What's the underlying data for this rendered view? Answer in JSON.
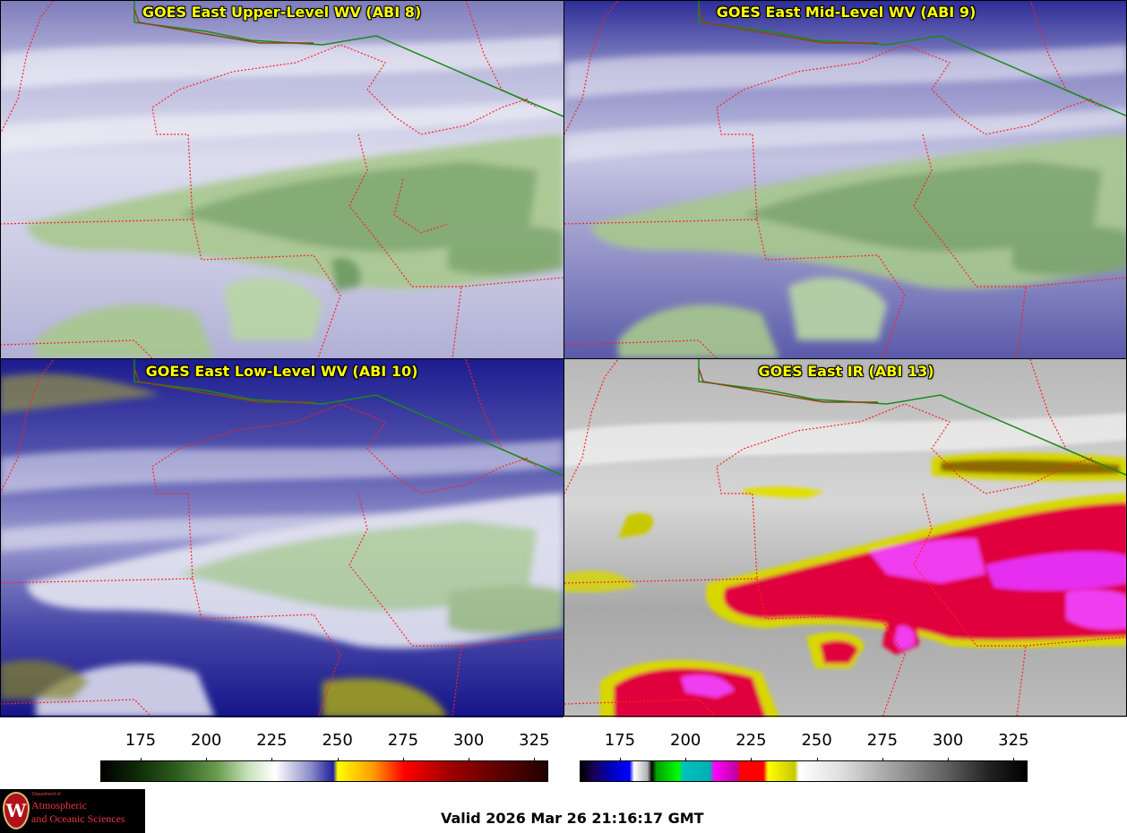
{
  "panels": [
    {
      "title": "GOES East Upper-Level WV (ABI 8)"
    },
    {
      "title": "GOES East Mid-Level WV (ABI 9)"
    },
    {
      "title": "GOES East Low-Level WV (ABI 10)"
    },
    {
      "title": "GOES East IR (ABI 13)"
    }
  ],
  "colorbar_wv": {
    "ticks": [
      "175",
      "200",
      "225",
      "250",
      "275",
      "300",
      "325"
    ],
    "min": 160,
    "max": 330
  },
  "colorbar_ir": {
    "ticks": [
      "175",
      "200",
      "225",
      "250",
      "275",
      "300",
      "325"
    ],
    "min": 160,
    "max": 330
  },
  "logo": {
    "small_line1": "Department of",
    "line1": "Atmospheric",
    "line2": "and Oceanic Sciences",
    "crest_letter": "W"
  },
  "valid_time": "Valid 2026 Mar 26 21:16:17 GMT",
  "colors": {
    "title_text": "#ffff00",
    "state_borders": "#ff2020",
    "country_border_canada": "#1a8a1a",
    "coastline": "#8b4513"
  }
}
